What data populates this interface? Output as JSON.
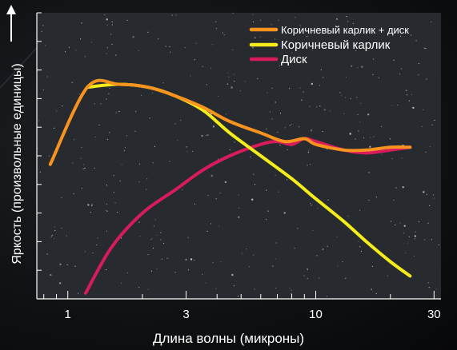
{
  "chart_data": {
    "type": "line",
    "xlabel": "Длина волны (микроны)",
    "ylabel": "Яркость (произвольные единицы)",
    "x_scale": "log",
    "xlim": [
      0.75,
      32
    ],
    "ylim": [
      0,
      100
    ],
    "x_ticks": [
      1,
      3,
      10,
      30
    ],
    "legend_position": "top-right",
    "grid": false,
    "series": [
      {
        "name": "Коричневый карлик + диск",
        "color": "#f7931e",
        "x": [
          0.85,
          1.2,
          1.6,
          2.1,
          2.7,
          3.5,
          4.5,
          6,
          7.5,
          9,
          10,
          13,
          16,
          20,
          24
        ],
        "y": [
          47,
          74,
          75,
          74,
          71,
          67,
          62,
          58,
          55,
          56,
          54,
          52,
          52,
          53,
          53
        ]
      },
      {
        "name": "Коричневый карлик",
        "color": "#f5ec1c",
        "x": [
          1.2,
          1.6,
          2.1,
          2.7,
          3.5,
          4.5,
          6,
          8,
          10,
          13,
          16,
          20,
          24
        ],
        "y": [
          74,
          75,
          74,
          71,
          66,
          58,
          50,
          42,
          35,
          27,
          20,
          13,
          8
        ]
      },
      {
        "name": "Диск",
        "color": "#d81b5b",
        "x": [
          1.18,
          1.5,
          2,
          2.7,
          3.5,
          4.5,
          6,
          7,
          8,
          9,
          10,
          13,
          16,
          20,
          24
        ],
        "y": [
          2,
          18,
          30,
          38,
          45,
          50,
          54,
          55,
          54,
          56,
          55,
          52,
          51,
          52,
          53
        ]
      }
    ]
  }
}
